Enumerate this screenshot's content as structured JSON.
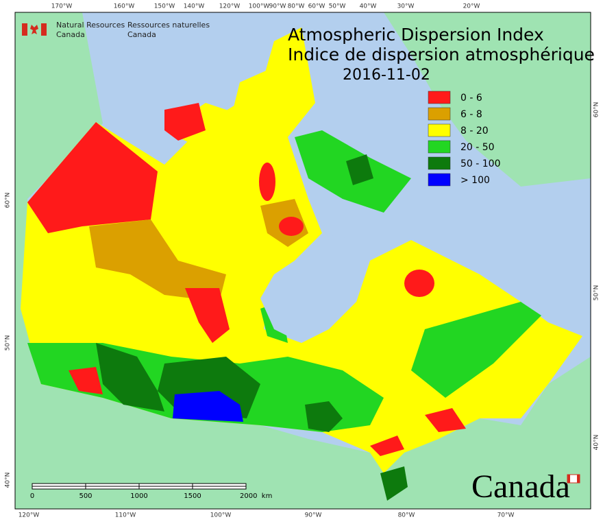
{
  "header": {
    "dept_en": [
      "Natural Resources",
      "Canada"
    ],
    "dept_fr": [
      "Ressources naturelles",
      "Canada"
    ]
  },
  "title": {
    "line1": "Atmospheric Dispersion Index",
    "line2": "Indice de dispersion atmosphérique",
    "date": "2016-11-02"
  },
  "legend": [
    {
      "label": "0 - 6",
      "color": "#ff1a1a"
    },
    {
      "label": "6 - 8",
      "color": "#dba000"
    },
    {
      "label": "8 - 20",
      "color": "#ffff00"
    },
    {
      "label": "20 - 50",
      "color": "#22d622"
    },
    {
      "label": "50 - 100",
      "color": "#0d7a0d"
    },
    {
      "label": "> 100",
      "color": "#0000ff"
    }
  ],
  "graticule": {
    "top": [
      "170°W",
      "160°W",
      "150°W",
      "140°W",
      "120°W",
      "100°W",
      "90°W",
      "80°W",
      "60°W",
      "50°W",
      "40°W",
      "30°W",
      "20°W"
    ],
    "bottom": [
      "120°W",
      "110°W",
      "100°W",
      "90°W",
      "80°W",
      "70°W"
    ],
    "left": [
      "60°N",
      "50°N",
      "40°N"
    ],
    "right": [
      "60°N",
      "50°N",
      "40°N"
    ]
  },
  "scale_bar": {
    "labels": [
      "0",
      "500",
      "1000",
      "1500",
      "2000  km"
    ]
  },
  "wordmark": "Canada"
}
